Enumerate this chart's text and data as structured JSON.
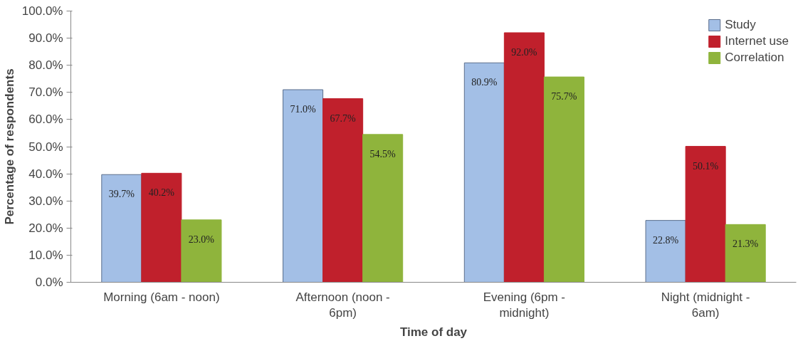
{
  "chart_data": {
    "type": "bar",
    "xlabel": "Time of day",
    "ylabel": "Percentage of respondents",
    "categories": [
      "Morning (6am - noon)",
      "Afternoon (noon - 6pm)",
      "Evening (6pm - midnight)",
      "Night (midnight - 6am)"
    ],
    "series": [
      {
        "name": "Study",
        "color": "#a3bfe6",
        "values": [
          39.7,
          71.0,
          80.9,
          22.8
        ]
      },
      {
        "name": "Internet use",
        "color": "#c0202c",
        "values": [
          40.2,
          67.7,
          92.0,
          50.1
        ]
      },
      {
        "name": "Correlation",
        "color": "#8fb43c",
        "values": [
          23.0,
          54.5,
          75.7,
          21.3
        ]
      }
    ],
    "ylim": [
      0,
      100
    ],
    "yticks": [
      {
        "value": 0,
        "label": "0.0%"
      },
      {
        "value": 10,
        "label": "10.0%"
      },
      {
        "value": 20,
        "label": "20.0%"
      },
      {
        "value": 30,
        "label": "30.0%"
      },
      {
        "value": 40,
        "label": "40.0%"
      },
      {
        "value": 50,
        "label": "50.0%"
      },
      {
        "value": 60,
        "label": "60.0%"
      },
      {
        "value": 70,
        "label": "70.0%"
      },
      {
        "value": 80,
        "label": "80.0%"
      },
      {
        "value": 90,
        "label": "90.0%"
      },
      {
        "value": 100,
        "label": "100.0%"
      }
    ],
    "value_labels": [
      [
        "39.7%",
        "71.0%",
        "80.9%",
        "22.8%"
      ],
      [
        "40.2%",
        "67.7%",
        "92.0%",
        "50.1%"
      ],
      [
        "23.0%",
        "54.5%",
        "75.7%",
        "21.3%"
      ]
    ],
    "legend": "top right",
    "grid": false
  }
}
